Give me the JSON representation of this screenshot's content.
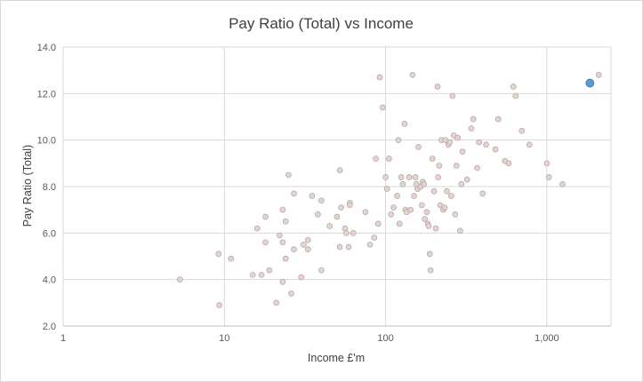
{
  "chart_data": {
    "type": "scatter",
    "title": "Pay Ratio (Total) vs Income",
    "xlabel": "Income £'m",
    "ylabel": "Pay Ratio (Total)",
    "x_scale": "log",
    "xlim": [
      1,
      2500
    ],
    "ylim": [
      2.0,
      14.0
    ],
    "x_ticks": [
      1,
      10,
      100,
      1000
    ],
    "x_tick_labels": [
      "1",
      "10",
      "100",
      "1,000"
    ],
    "y_ticks": [
      2,
      4,
      6,
      8,
      10,
      12,
      14
    ],
    "y_tick_labels": [
      "2.0",
      "4.0",
      "6.0",
      "8.0",
      "10.0",
      "12.0",
      "14.0"
    ],
    "grid": true,
    "legend": "none",
    "colors": {
      "points": "#e8d2cd",
      "highlight": "#5b9bd5",
      "grid": "#d9d9d9"
    },
    "series": [
      {
        "points": [
          [
            5.3,
            4.0
          ],
          [
            9.2,
            5.1
          ],
          [
            9.3,
            2.9
          ],
          [
            11,
            4.9
          ],
          [
            15,
            4.2
          ],
          [
            16,
            6.2
          ],
          [
            17,
            4.2
          ],
          [
            18,
            6.7
          ],
          [
            18,
            5.6
          ],
          [
            19,
            4.4
          ],
          [
            21,
            3.0
          ],
          [
            22,
            5.9
          ],
          [
            23,
            7.0
          ],
          [
            23,
            5.6
          ],
          [
            23,
            3.9
          ],
          [
            24,
            4.9
          ],
          [
            24,
            6.5
          ],
          [
            25,
            8.5
          ],
          [
            26,
            3.4
          ],
          [
            27,
            7.7
          ],
          [
            27,
            5.3
          ],
          [
            30,
            4.1
          ],
          [
            31,
            5.5
          ],
          [
            33,
            5.3
          ],
          [
            33,
            5.7
          ],
          [
            35,
            7.6
          ],
          [
            38,
            6.8
          ],
          [
            40,
            7.4
          ],
          [
            40,
            4.4
          ],
          [
            45,
            6.3
          ],
          [
            50,
            6.7
          ],
          [
            52,
            8.7
          ],
          [
            52,
            5.4
          ],
          [
            53,
            7.1
          ],
          [
            56,
            6.2
          ],
          [
            57,
            6.0
          ],
          [
            59,
            5.4
          ],
          [
            60,
            7.3
          ],
          [
            60,
            7.2
          ],
          [
            63,
            6.0
          ],
          [
            75,
            6.9
          ],
          [
            80,
            5.5
          ],
          [
            85,
            5.8
          ],
          [
            87,
            9.2
          ],
          [
            90,
            6.4
          ],
          [
            92,
            12.7
          ],
          [
            96,
            11.4
          ],
          [
            100,
            8.4
          ],
          [
            102,
            7.9
          ],
          [
            105,
            9.2
          ],
          [
            108,
            6.8
          ],
          [
            112,
            7.1
          ],
          [
            118,
            7.6
          ],
          [
            120,
            10.0
          ],
          [
            122,
            6.4
          ],
          [
            125,
            8.4
          ],
          [
            128,
            8.1
          ],
          [
            131,
            10.7
          ],
          [
            133,
            7.0
          ],
          [
            135,
            6.9
          ],
          [
            140,
            8.4
          ],
          [
            143,
            7.0
          ],
          [
            147,
            12.8
          ],
          [
            150,
            7.6
          ],
          [
            153,
            8.4
          ],
          [
            155,
            8.1
          ],
          [
            158,
            7.9
          ],
          [
            160,
            9.7
          ],
          [
            165,
            8.0
          ],
          [
            168,
            7.2
          ],
          [
            170,
            8.2
          ],
          [
            173,
            8.1
          ],
          [
            175,
            6.6
          ],
          [
            180,
            6.9
          ],
          [
            183,
            6.4
          ],
          [
            185,
            6.3
          ],
          [
            188,
            5.1
          ],
          [
            190,
            4.4
          ],
          [
            195,
            9.2
          ],
          [
            200,
            7.8
          ],
          [
            205,
            6.2
          ],
          [
            210,
            12.3
          ],
          [
            212,
            8.4
          ],
          [
            215,
            8.9
          ],
          [
            218,
            7.2
          ],
          [
            222,
            10.0
          ],
          [
            228,
            7.0
          ],
          [
            232,
            7.1
          ],
          [
            235,
            10.0
          ],
          [
            240,
            7.8
          ],
          [
            245,
            9.8
          ],
          [
            250,
            9.9
          ],
          [
            255,
            7.6
          ],
          [
            260,
            11.9
          ],
          [
            265,
            10.2
          ],
          [
            270,
            6.8
          ],
          [
            275,
            8.9
          ],
          [
            280,
            10.1
          ],
          [
            290,
            6.1
          ],
          [
            295,
            8.1
          ],
          [
            300,
            9.5
          ],
          [
            320,
            8.3
          ],
          [
            340,
            10.5
          ],
          [
            350,
            10.9
          ],
          [
            370,
            8.8
          ],
          [
            380,
            9.9
          ],
          [
            400,
            7.7
          ],
          [
            420,
            9.8
          ],
          [
            480,
            9.6
          ],
          [
            500,
            10.9
          ],
          [
            550,
            9.1
          ],
          [
            580,
            9.0
          ],
          [
            620,
            12.3
          ],
          [
            640,
            11.9
          ],
          [
            700,
            10.4
          ],
          [
            780,
            9.8
          ],
          [
            1000,
            9.0
          ],
          [
            1030,
            8.4
          ],
          [
            1250,
            8.1
          ],
          [
            2100,
            12.8
          ]
        ]
      }
    ],
    "highlight_point": [
      1850,
      12.45
    ]
  }
}
